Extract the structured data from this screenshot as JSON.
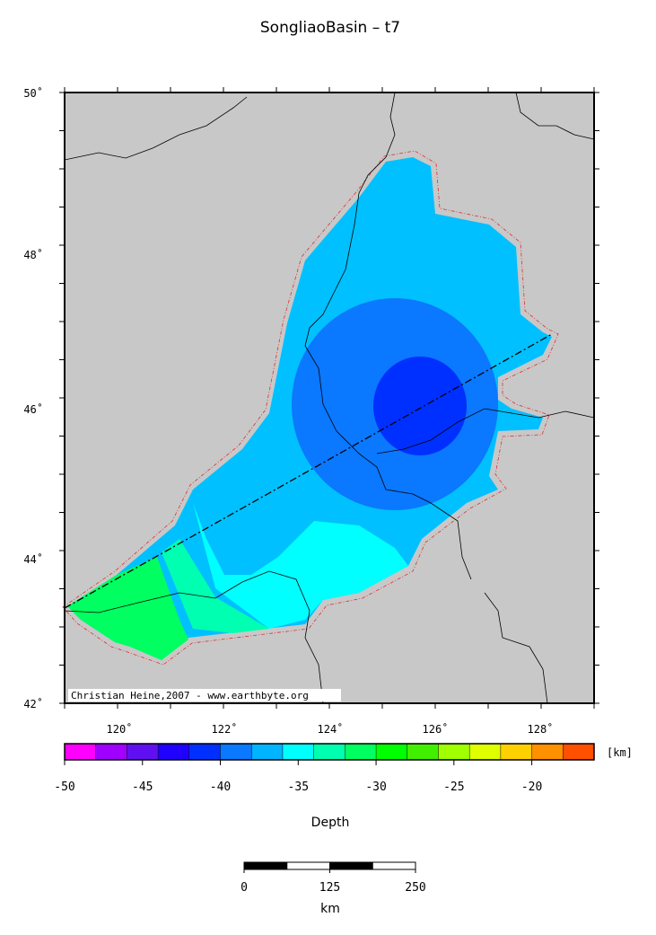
{
  "title": "SongliaoBasin – t7",
  "map": {
    "lat_labels": [
      "50˚",
      "48˚",
      "46˚",
      "44˚",
      "42˚"
    ],
    "lon_labels": [
      "120˚",
      "122˚",
      "124˚",
      "126˚",
      "128˚"
    ],
    "credit": "Christian Heine,2007 - www.earthbyte.org"
  },
  "colorbar": {
    "ticks": [
      -50,
      -45,
      -40,
      -35,
      -30,
      -25,
      -20
    ],
    "unit": "[km]",
    "label": "Depth"
  },
  "scalebar": {
    "ticks": [
      0,
      125,
      250
    ],
    "unit": "km"
  }
}
